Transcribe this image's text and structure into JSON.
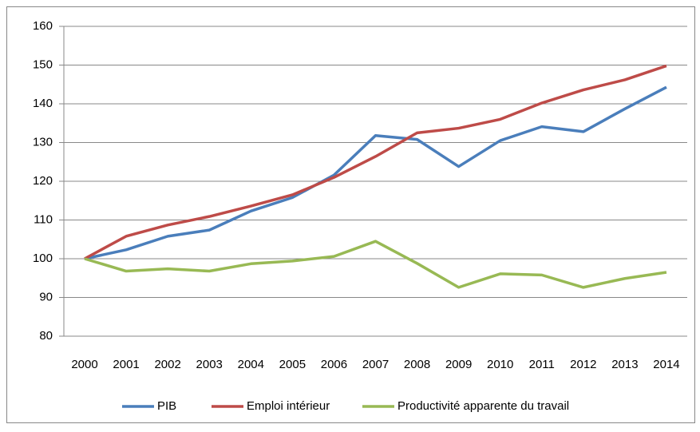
{
  "chart_data": {
    "type": "line",
    "categories": [
      "2000",
      "2001",
      "2002",
      "2003",
      "2004",
      "2005",
      "2006",
      "2007",
      "2008",
      "2009",
      "2010",
      "2011",
      "2012",
      "2013",
      "2014"
    ],
    "series": [
      {
        "name": "PIB",
        "color": "#4a7ebb",
        "values": [
          100,
          102.3,
          105.8,
          107.4,
          112.3,
          115.8,
          121.6,
          131.8,
          130.8,
          123.8,
          130.5,
          134.1,
          132.8,
          138.7,
          144.3
        ]
      },
      {
        "name": "Emploi intérieur",
        "color": "#be4b48",
        "values": [
          100,
          105.8,
          108.7,
          110.9,
          113.6,
          116.5,
          121.0,
          126.4,
          132.5,
          133.7,
          136.0,
          140.2,
          143.6,
          146.2,
          149.8
        ]
      },
      {
        "name": "Productivité apparente du travail",
        "color": "#98b954",
        "values": [
          100,
          96.8,
          97.4,
          96.8,
          98.7,
          99.4,
          100.6,
          104.5,
          98.8,
          92.6,
          96.1,
          95.8,
          92.6,
          94.9,
          96.5
        ]
      }
    ],
    "ylim": [
      80,
      160
    ],
    "yticks": [
      80,
      90,
      100,
      110,
      120,
      130,
      140,
      150,
      160
    ],
    "grid": true,
    "legend": "bottom"
  }
}
